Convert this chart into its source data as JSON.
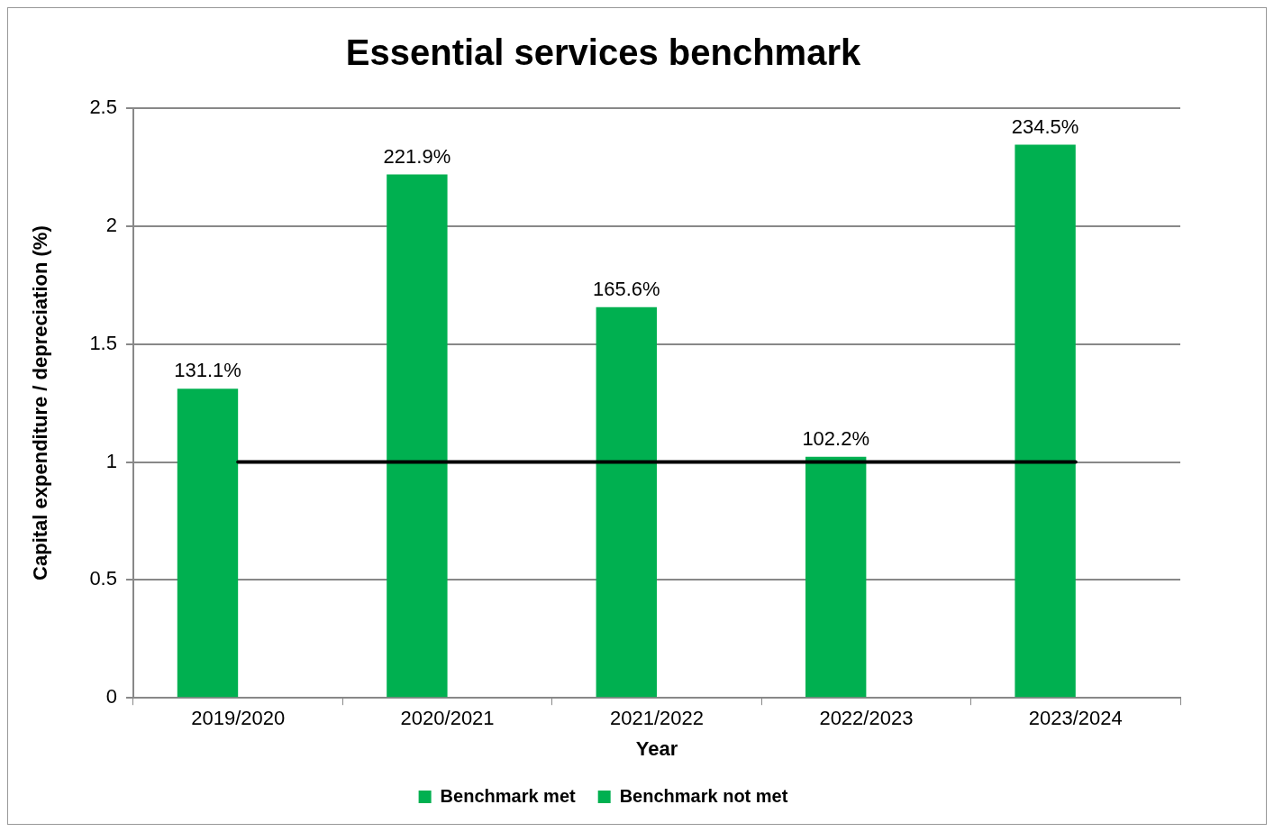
{
  "chart_data": {
    "type": "bar",
    "title": "Essential services benchmark",
    "xlabel": "Year",
    "ylabel": "Capital expenditure / depreciation (%)",
    "categories": [
      "2019/2020",
      "2020/2021",
      "2021/2022",
      "2022/2023",
      "2023/2024"
    ],
    "series": [
      {
        "name": "Benchmark met",
        "color": "#00b050",
        "values": [
          1.311,
          2.219,
          1.656,
          1.022,
          2.345
        ],
        "value_labels": [
          "131.1%",
          "221.9%",
          "165.6%",
          "102.2%",
          "234.5%"
        ]
      },
      {
        "name": "Benchmark not met",
        "color": "#00b050",
        "values": [
          null,
          null,
          null,
          null,
          null
        ]
      }
    ],
    "ylim": [
      0,
      2.5
    ],
    "yticks": [
      0,
      0.5,
      1,
      1.5,
      2,
      2.5
    ],
    "grid": "y",
    "legend": "bottom",
    "ref_lines": [
      {
        "axis": "y",
        "value": 1,
        "color": "#000000"
      }
    ]
  }
}
